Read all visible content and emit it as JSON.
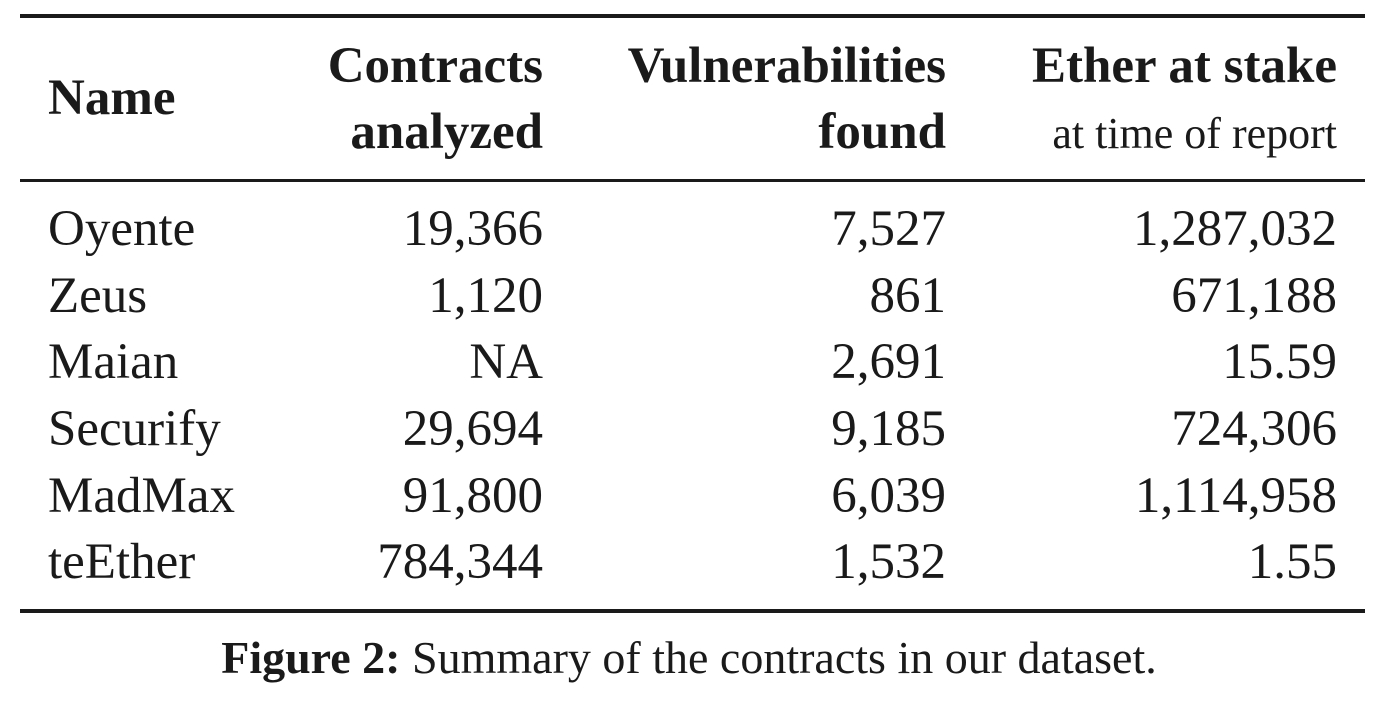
{
  "table": {
    "headers": {
      "name": "Name",
      "contracts_line1": "Contracts",
      "contracts_line2": "analyzed",
      "vulns_line1": "Vulnerabilities",
      "vulns_line2": "found",
      "ether_line1": "Ether at stake",
      "ether_line2": "at time of report"
    },
    "rows": [
      {
        "name": "Oyente",
        "contracts": "19,366",
        "vulns": "7,527",
        "ether": "1,287,032"
      },
      {
        "name": "Zeus",
        "contracts": "1,120",
        "vulns": "861",
        "ether": "671,188"
      },
      {
        "name": "Maian",
        "contracts": "NA",
        "vulns": "2,691",
        "ether": "15.59"
      },
      {
        "name": "Securify",
        "contracts": "29,694",
        "vulns": "9,185",
        "ether": "724,306"
      },
      {
        "name": "MadMax",
        "contracts": "91,800",
        "vulns": "6,039",
        "ether": "1,114,958"
      },
      {
        "name": "teEther",
        "contracts": "784,344",
        "vulns": "1,532",
        "ether": "1.55"
      }
    ]
  },
  "caption": {
    "label": "Figure 2:",
    "text": " Summary of the contracts in our dataset."
  }
}
